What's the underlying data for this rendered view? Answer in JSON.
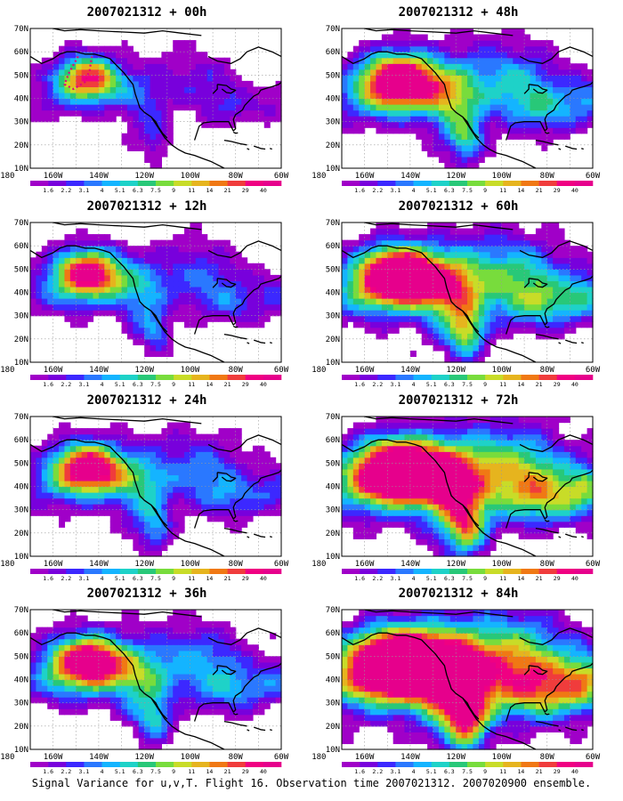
{
  "panels": [
    {
      "title": "2007021312 + 00h",
      "lead": "00h",
      "intensity": 0.35,
      "flight_track": true
    },
    {
      "title": "2007021312 + 48h",
      "lead": "48h",
      "intensity": 0.6,
      "flight_track": false
    },
    {
      "title": "2007021312 + 12h",
      "lead": "12h",
      "intensity": 0.45,
      "flight_track": false
    },
    {
      "title": "2007021312 + 60h",
      "lead": "60h",
      "intensity": 0.7,
      "flight_track": false
    },
    {
      "title": "2007021312 + 24h",
      "lead": "24h",
      "intensity": 0.5,
      "flight_track": false
    },
    {
      "title": "2007021312 + 72h",
      "lead": "72h",
      "intensity": 0.8,
      "flight_track": false
    },
    {
      "title": "2007021312 + 36h",
      "lead": "36h",
      "intensity": 0.55,
      "flight_track": false
    },
    {
      "title": "2007021312 + 84h",
      "lead": "84h",
      "intensity": 0.95,
      "flight_track": false
    }
  ],
  "axes": {
    "lat_labels": [
      "70N",
      "60N",
      "50N",
      "40N",
      "30N",
      "20N",
      "10N"
    ],
    "lon_labels": [
      "180",
      "160W",
      "140W",
      "120W",
      "100W",
      "80W",
      "60W"
    ]
  },
  "colorbar": {
    "labels": [
      "1.6",
      "2.2",
      "3.1",
      "4",
      "5.1",
      "6.3",
      "7.5",
      "9",
      "11",
      "14",
      "21",
      "29",
      "40"
    ],
    "colors": [
      "#a000c8",
      "#7800dc",
      "#3c28ff",
      "#2a78ff",
      "#14b4ff",
      "#1ed2c8",
      "#28c878",
      "#78dc3c",
      "#c8dc28",
      "#e6b41e",
      "#f07814",
      "#f03c3c",
      "#f00082",
      "#e6008c"
    ]
  },
  "colors": {
    "coast": "#000000",
    "track": "#e6007e",
    "grid": "#9a9a9a"
  },
  "caption": "Signal Variance for u,v,T. Flight 16. Observation time 2007021312. 2007020900 ensemble."
}
